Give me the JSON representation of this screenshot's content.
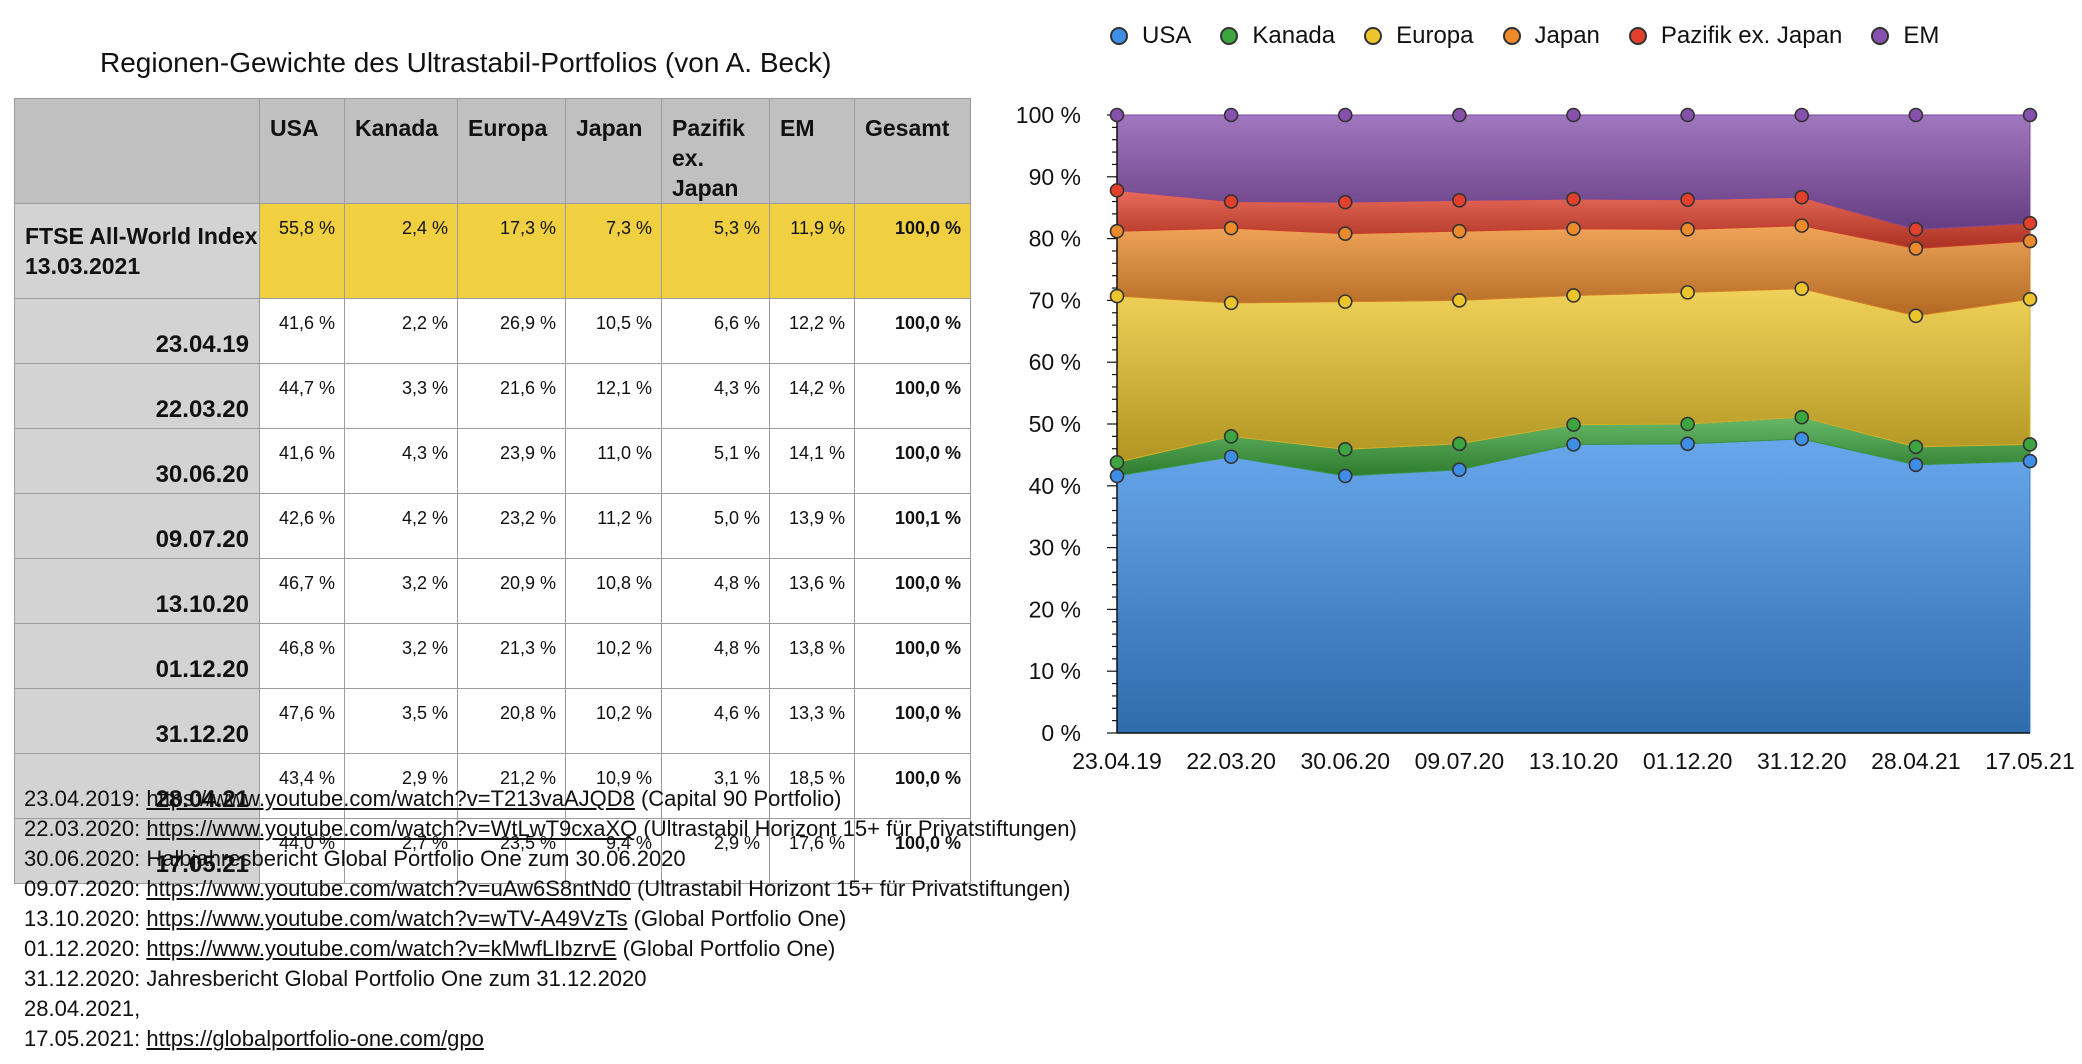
{
  "page_title": "Regionen-Gewichte des Ultrastabil-Portfolios (von A. Beck)",
  "table": {
    "headers": [
      "",
      "USA",
      "Kanada",
      "Europa",
      "Japan",
      "Pazifik ex. Japan",
      "EM",
      "Gesamt"
    ],
    "ftse": {
      "label": "FTSE All-World Index 13.03.2021",
      "cells": [
        "55,8 %",
        "2,4 %",
        "17,3 %",
        "7,3 %",
        "5,3 %",
        "11,9 %",
        "100,0 %"
      ]
    },
    "rows": [
      {
        "date": "23.04.19",
        "cells": [
          "41,6 %",
          "2,2 %",
          "26,9 %",
          "10,5 %",
          "6,6 %",
          "12,2 %",
          "100,0 %"
        ]
      },
      {
        "date": "22.03.20",
        "cells": [
          "44,7 %",
          "3,3 %",
          "21,6 %",
          "12,1 %",
          "4,3 %",
          "14,2 %",
          "100,0 %"
        ]
      },
      {
        "date": "30.06.20",
        "cells": [
          "41,6 %",
          "4,3 %",
          "23,9 %",
          "11,0 %",
          "5,1 %",
          "14,1 %",
          "100,0 %"
        ]
      },
      {
        "date": "09.07.20",
        "cells": [
          "42,6 %",
          "4,2 %",
          "23,2 %",
          "11,2 %",
          "5,0 %",
          "13,9 %",
          "100,1 %"
        ]
      },
      {
        "date": "13.10.20",
        "cells": [
          "46,7 %",
          "3,2 %",
          "20,9 %",
          "10,8 %",
          "4,8 %",
          "13,6 %",
          "100,0 %"
        ]
      },
      {
        "date": "01.12.20",
        "cells": [
          "46,8 %",
          "3,2 %",
          "21,3 %",
          "10,2 %",
          "4,8 %",
          "13,8 %",
          "100,0 %"
        ]
      },
      {
        "date": "31.12.20",
        "cells": [
          "47,6 %",
          "3,5 %",
          "20,8 %",
          "10,2 %",
          "4,6 %",
          "13,3 %",
          "100,0 %"
        ]
      },
      {
        "date": "28.04.21",
        "cells": [
          "43,4 %",
          "2,9 %",
          "21,2 %",
          "10,9 %",
          "3,1 %",
          "18,5 %",
          "100,0 %"
        ]
      },
      {
        "date": "17.05.21",
        "cells": [
          "44,0 %",
          "2,7 %",
          "23,5 %",
          "9,4 %",
          "2,9 %",
          "17,6 %",
          "100,0 %"
        ]
      }
    ]
  },
  "footnotes": [
    {
      "prefix": "23.04.2019: ",
      "link": "https://www.youtube.com/watch?v=T213vaAJQD8",
      "suffix": " (Capital 90 Portfolio)"
    },
    {
      "prefix": "22.03.2020: ",
      "link": "https://www.youtube.com/watch?v=WtLwT9cxaXQ",
      "suffix": " (Ultrastabil Horizont 15+ für Privatstiftungen)"
    },
    {
      "prefix": "30.06.2020: Halbjahresbericht Global Portfolio One zum 30.06.2020",
      "link": "",
      "suffix": ""
    },
    {
      "prefix": "09.07.2020: ",
      "link": "https://www.youtube.com/watch?v=uAw6S8ntNd0",
      "suffix": " (Ultrastabil Horizont 15+ für Privatstiftungen)"
    },
    {
      "prefix": "13.10.2020: ",
      "link": "https://www.youtube.com/watch?v=wTV-A49VzTs",
      "suffix": " (Global Portfolio One)"
    },
    {
      "prefix": "01.12.2020: ",
      "link": "https://www.youtube.com/watch?v=kMwfLIbzrvE",
      "suffix": " (Global Portfolio One)"
    },
    {
      "prefix": "31.12.2020: Jahresbericht Global Portfolio One zum 31.12.2020",
      "link": "",
      "suffix": ""
    },
    {
      "prefix": "28.04.2021,",
      "link": "",
      "suffix": ""
    },
    {
      "prefix": "17.05.2021: ",
      "link": "https://globalportfolio-one.com/gpo",
      "suffix": ""
    }
  ],
  "chart_data": {
    "type": "area",
    "stacked": true,
    "title": "",
    "xlabel": "",
    "ylabel": "",
    "ylim": [
      0,
      100
    ],
    "y_ticks": [
      "0 %",
      "10 %",
      "20 %",
      "30 %",
      "40 %",
      "50 %",
      "60 %",
      "70 %",
      "80 %",
      "90 %",
      "100 %"
    ],
    "categories": [
      "23.04.19",
      "22.03.20",
      "30.06.20",
      "09.07.20",
      "13.10.20",
      "01.12.20",
      "31.12.20",
      "28.04.21",
      "17.05.21"
    ],
    "legend_position": "top",
    "series": [
      {
        "name": "USA",
        "color": "#3f8ee6",
        "values": [
          41.6,
          44.7,
          41.6,
          42.6,
          46.7,
          46.8,
          47.6,
          43.4,
          44.0
        ]
      },
      {
        "name": "Kanada",
        "color": "#3da53f",
        "values": [
          2.2,
          3.3,
          4.3,
          4.2,
          3.2,
          3.2,
          3.5,
          2.9,
          2.7
        ]
      },
      {
        "name": "Europa",
        "color": "#ecc52c",
        "values": [
          26.9,
          21.6,
          23.9,
          23.2,
          20.9,
          21.3,
          20.8,
          21.2,
          23.5
        ]
      },
      {
        "name": "Japan",
        "color": "#ec8a2c",
        "values": [
          10.5,
          12.1,
          11.0,
          11.2,
          10.8,
          10.2,
          10.2,
          10.9,
          9.4
        ]
      },
      {
        "name": "Pazifik ex. Japan",
        "color": "#e2402c",
        "values": [
          6.6,
          4.3,
          5.1,
          5.0,
          4.8,
          4.8,
          4.6,
          3.1,
          2.9
        ]
      },
      {
        "name": "EM",
        "color": "#8651ad",
        "values": [
          12.2,
          14.2,
          14.1,
          13.9,
          13.6,
          13.8,
          13.3,
          18.5,
          17.6
        ]
      }
    ]
  }
}
